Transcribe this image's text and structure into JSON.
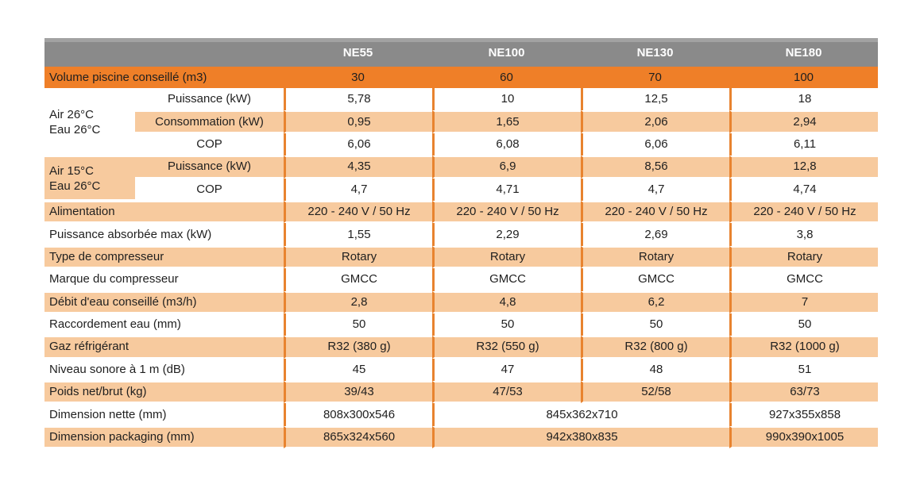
{
  "colors": {
    "accent": "#EF7F28",
    "tint": "#F7CA9E",
    "divider": "#E8832F",
    "header_gray": "#8A8A8A",
    "header_text": "#FFFFFF",
    "body_text": "#1F1F1F"
  },
  "table": {
    "header": {
      "blank": "",
      "models": [
        "NE55",
        "NE100",
        "NE130",
        "NE180"
      ]
    },
    "rows": [
      {
        "label": "Volume piscine conseillé (m3)",
        "variant": "accent",
        "values": [
          "30",
          "60",
          "70",
          "100"
        ]
      },
      {
        "group": {
          "label": "Air 26°C\nEau 26°C",
          "rowspan": 3,
          "variant": "white"
        },
        "sublabel": "Puissance (kW)",
        "variant": "white",
        "values": [
          "5,78",
          "10",
          "12,5",
          "18"
        ]
      },
      {
        "sublabel": "Consommation (kW)",
        "variant": "tint",
        "values": [
          "0,95",
          "1,65",
          "2,06",
          "2,94"
        ]
      },
      {
        "sublabel": "COP",
        "variant": "white",
        "values": [
          "6,06",
          "6,08",
          "6,06",
          "6,11"
        ]
      },
      {
        "group": {
          "label": "Air 15°C\nEau 26°C",
          "rowspan": 2,
          "variant": "tint"
        },
        "sublabel": "Puissance (kW)",
        "variant": "tint",
        "values": [
          "4,35",
          "6,9",
          "8,56",
          "12,8"
        ]
      },
      {
        "sublabel": "COP",
        "variant": "white",
        "values": [
          "4,7",
          "4,71",
          "4,7",
          "4,74"
        ]
      },
      {
        "label": "Alimentation",
        "variant": "tint",
        "values": [
          "220 - 240 V / 50 Hz",
          "220 - 240 V / 50 Hz",
          "220 - 240 V / 50 Hz",
          "220 - 240 V / 50 Hz"
        ]
      },
      {
        "label": "Puissance absorbée max (kW)",
        "variant": "white",
        "values": [
          "1,55",
          "2,29",
          "2,69",
          "3,8"
        ]
      },
      {
        "label": "Type de compresseur",
        "variant": "tint",
        "values": [
          "Rotary",
          "Rotary",
          "Rotary",
          "Rotary"
        ]
      },
      {
        "label": "Marque du compresseur",
        "variant": "white",
        "values": [
          "GMCC",
          "GMCC",
          "GMCC",
          "GMCC"
        ]
      },
      {
        "label": "Débit d'eau conseillé (m3/h)",
        "variant": "tint",
        "values": [
          "2,8",
          "4,8",
          "6,2",
          "7"
        ]
      },
      {
        "label": "Raccordement eau (mm)",
        "variant": "white",
        "values": [
          "50",
          "50",
          "50",
          "50"
        ]
      },
      {
        "label": "Gaz réfrigérant",
        "variant": "tint",
        "values": [
          "R32 (380 g)",
          "R32 (550 g)",
          "R32 (800 g)",
          "R32 (1000 g)"
        ]
      },
      {
        "label": "Niveau sonore à 1 m (dB)",
        "variant": "white",
        "values": [
          "45",
          "47",
          "48",
          "51"
        ]
      },
      {
        "label": "Poids net/brut (kg)",
        "variant": "tint",
        "values": [
          "39/43",
          "47/53",
          "52/58",
          "63/73"
        ]
      },
      {
        "label": "Dimension nette (mm)",
        "variant": "white",
        "values": [
          "808x300x546",
          {
            "text": "845x362x710",
            "span": 2
          },
          "927x355x858"
        ]
      },
      {
        "label": "Dimension packaging (mm)",
        "variant": "tint",
        "values": [
          "865x324x560",
          {
            "text": "942x380x835",
            "span": 2
          },
          "990x390x1005"
        ]
      }
    ]
  }
}
